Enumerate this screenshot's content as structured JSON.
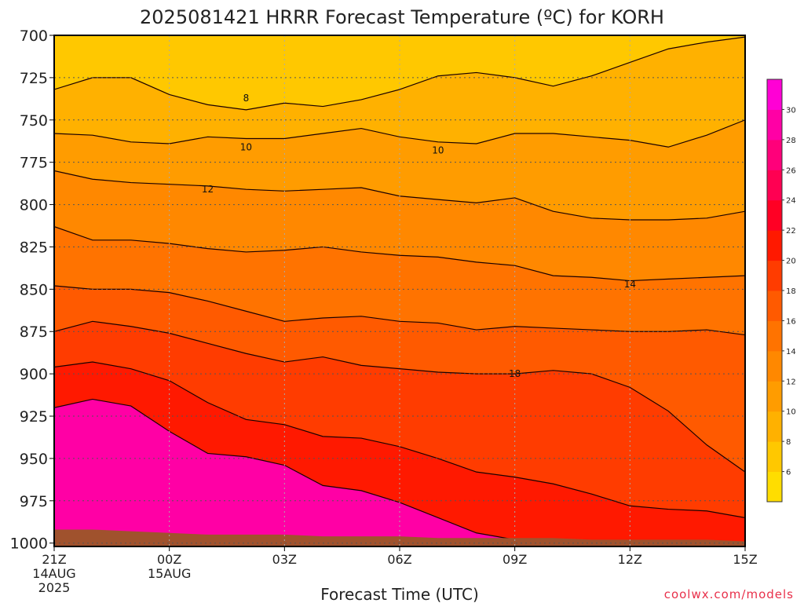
{
  "chart_data": {
    "type": "heatmap",
    "title": "2025081421 HRRR Forecast Temperature (ºC) for KORH",
    "xlabel": "Forecast Time (UTC)",
    "ylabel": "",
    "x_ticks": [
      "21Z",
      "00Z",
      "03Z",
      "06Z",
      "09Z",
      "12Z",
      "15Z"
    ],
    "x_tick_sublabels": [
      [
        "14AUG",
        "2025"
      ],
      [
        "15AUG"
      ],
      [],
      [],
      [],
      [],
      []
    ],
    "y_ticks": [
      "700",
      "725",
      "750",
      "775",
      "800",
      "825",
      "850",
      "875",
      "900",
      "925",
      "950",
      "975",
      "1000"
    ],
    "y_values_hPa": [
      700,
      725,
      750,
      775,
      800,
      825,
      850,
      875,
      900,
      925,
      950,
      975,
      1000
    ],
    "ylim": [
      1002,
      700
    ],
    "x_hours": [
      0,
      1,
      2,
      3,
      4,
      5,
      6,
      7,
      8,
      9,
      10,
      11,
      12,
      13,
      14,
      15,
      16,
      17,
      18
    ],
    "x_range_hours": [
      0,
      18
    ],
    "colorbar": {
      "ticks": [
        "6",
        "8",
        "10",
        "12",
        "14",
        "16",
        "18",
        "20",
        "22",
        "24",
        "26",
        "28",
        "30"
      ],
      "levels": [
        4,
        6,
        8,
        10,
        12,
        14,
        16,
        18,
        20,
        22,
        24,
        26,
        28,
        30,
        32
      ],
      "colors": [
        "#ffdd00",
        "#ffc800",
        "#ffb100",
        "#ff9c00",
        "#ff8800",
        "#ff7300",
        "#ff5a00",
        "#ff3c00",
        "#ff1900",
        "#ff0024",
        "#ff0052",
        "#ff007a",
        "#ff00a5",
        "#ff00d5"
      ]
    },
    "contour_labels": [
      {
        "text": "8",
        "hour": 5.0,
        "level": 737
      },
      {
        "text": "10",
        "hour": 5.0,
        "level": 766
      },
      {
        "text": "10",
        "hour": 10.0,
        "level": 768
      },
      {
        "text": "12",
        "hour": 4.0,
        "level": 791
      },
      {
        "text": "14",
        "hour": 15.0,
        "level": 847
      },
      {
        "text": "18",
        "hour": 12.0,
        "level": 900
      }
    ],
    "isotherms_hPa": {
      "8": [
        732,
        725,
        725,
        735,
        741,
        744,
        740,
        742,
        738,
        732,
        724,
        722,
        725,
        730,
        724,
        716,
        708,
        704,
        701
      ],
      "10": [
        758,
        759,
        763,
        764,
        760,
        761,
        761,
        758,
        755,
        760,
        763,
        764,
        758,
        758,
        760,
        762,
        766,
        759,
        750
      ],
      "12": [
        780,
        785,
        787,
        788,
        789,
        791,
        792,
        791,
        790,
        795,
        797,
        799,
        796,
        804,
        808,
        809,
        809,
        808,
        804
      ],
      "14": [
        813,
        821,
        821,
        823,
        826,
        828,
        827,
        825,
        828,
        830,
        831,
        834,
        836,
        842,
        843,
        845,
        844,
        843,
        842
      ],
      "16": [
        848,
        850,
        850,
        852,
        857,
        863,
        869,
        867,
        866,
        869,
        870,
        874,
        872,
        873,
        874,
        875,
        875,
        874,
        877
      ],
      "18": [
        875,
        869,
        872,
        876,
        882,
        888,
        893,
        890,
        895,
        897,
        899,
        900,
        900,
        898,
        900,
        908,
        922,
        942,
        958
      ],
      "20": [
        896,
        893,
        897,
        904,
        917,
        927,
        930,
        937,
        938,
        943,
        950,
        958,
        961,
        965,
        971,
        978,
        980,
        981,
        985
      ],
      "22": [
        920,
        915,
        919,
        934,
        947,
        949,
        954,
        966,
        969,
        976,
        985,
        994,
        998,
        1000,
        1001,
        1001,
        1001,
        1001,
        1001
      ]
    },
    "surface_pressure_hPa": [
      992,
      992,
      993,
      994,
      995,
      995,
      995,
      996,
      996,
      996,
      997,
      997,
      997,
      997,
      998,
      998,
      998,
      998,
      999
    ],
    "grid": true
  },
  "credit": "coolwx.com/models"
}
